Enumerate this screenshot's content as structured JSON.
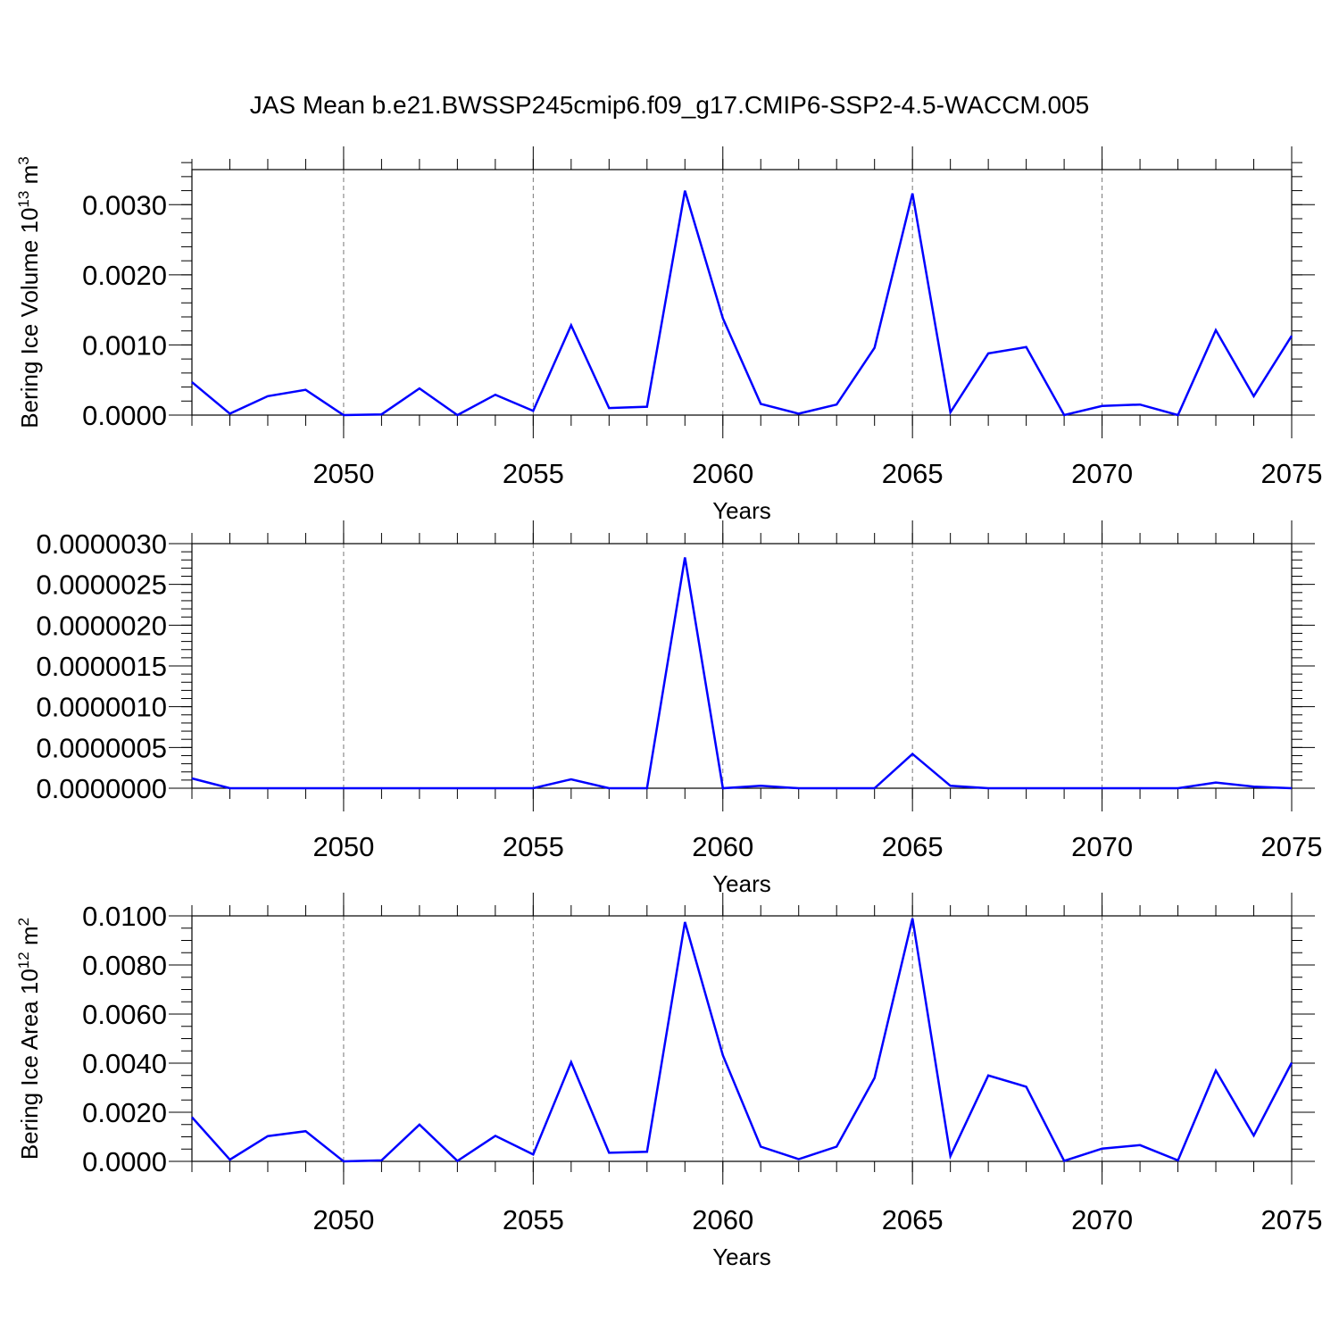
{
  "title": "JAS Mean b.e21.BWSSP245cmip6.f09_g17.CMIP6-SSP2-4.5-WACCM.005",
  "colors": {
    "line": "#0000ff",
    "axis": "#000000",
    "grid": "#777777"
  },
  "chart_data": [
    {
      "type": "line",
      "ylabel": "Bering Ice Volume",
      "ylabel_unit_base": "10",
      "ylabel_unit_exp": "13",
      "ylabel_unit_sym": "m",
      "ylabel_unit_pow": "3",
      "xlabel": "Years",
      "xlim": [
        2046,
        2075
      ],
      "ylim": [
        0,
        0.0035
      ],
      "xticks": [
        "2050",
        "2055",
        "2060",
        "2065",
        "2070",
        "2075"
      ],
      "yticks": [
        "0.0000",
        "0.0010",
        "0.0020",
        "0.0030"
      ],
      "ytick_values": [
        0,
        0.001,
        0.002,
        0.003
      ],
      "y_minor_step": 0.0002,
      "grid": "vertical dashed at major x ticks",
      "x": [
        2046,
        2047,
        2048,
        2049,
        2050,
        2051,
        2052,
        2053,
        2054,
        2055,
        2056,
        2057,
        2058,
        2059,
        2060,
        2061,
        2062,
        2063,
        2064,
        2065,
        2066,
        2067,
        2068,
        2069,
        2070,
        2071,
        2072,
        2073,
        2074,
        2075
      ],
      "values": [
        0.00047,
        2e-05,
        0.00027,
        0.00036,
        0.0,
        1e-05,
        0.00038,
        0.0,
        0.00029,
        6e-05,
        0.00128,
        0.0001,
        0.00012,
        0.0032,
        0.00138,
        0.00016,
        2e-05,
        0.00015,
        0.00096,
        0.00316,
        4e-05,
        0.00088,
        0.00097,
        0.0,
        0.00013,
        0.00015,
        0.0,
        0.00121,
        0.00027,
        0.00113
      ]
    },
    {
      "type": "line",
      "ylabel": "",
      "xlabel": "Years",
      "xlim": [
        2046,
        2075
      ],
      "ylim": [
        0,
        3e-06
      ],
      "xticks": [
        "2050",
        "2055",
        "2060",
        "2065",
        "2070",
        "2075"
      ],
      "yticks": [
        "0.0000000",
        "0.0000005",
        "0.0000010",
        "0.0000015",
        "0.0000020",
        "0.0000025",
        "0.0000030"
      ],
      "ytick_values": [
        0,
        5e-07,
        1e-06,
        1.5e-06,
        2e-06,
        2.5e-06,
        3e-06
      ],
      "y_minor_step": 1e-07,
      "grid": "vertical dashed at major x ticks",
      "x": [
        2046,
        2047,
        2048,
        2049,
        2050,
        2051,
        2052,
        2053,
        2054,
        2055,
        2056,
        2057,
        2058,
        2059,
        2060,
        2061,
        2062,
        2063,
        2064,
        2065,
        2066,
        2067,
        2068,
        2069,
        2070,
        2071,
        2072,
        2073,
        2074,
        2075
      ],
      "values": [
        1.2e-07,
        0.0,
        0.0,
        0.0,
        0.0,
        0.0,
        0.0,
        0.0,
        0.0,
        0.0,
        1.1e-07,
        0.0,
        0.0,
        2.83e-06,
        0.0,
        3e-08,
        0.0,
        0.0,
        0.0,
        4.2e-07,
        3e-08,
        0.0,
        0.0,
        0.0,
        0.0,
        0.0,
        0.0,
        7e-08,
        2e-08,
        0.0
      ]
    },
    {
      "type": "line",
      "ylabel": "Bering Ice Area",
      "ylabel_unit_base": "10",
      "ylabel_unit_exp": "12",
      "ylabel_unit_sym": "m",
      "ylabel_unit_pow": "2",
      "xlabel": "Years",
      "xlim": [
        2046,
        2075
      ],
      "ylim": [
        0,
        0.01
      ],
      "xticks": [
        "2050",
        "2055",
        "2060",
        "2065",
        "2070",
        "2075"
      ],
      "yticks": [
        "0.0000",
        "0.0020",
        "0.0040",
        "0.0060",
        "0.0080",
        "0.0100"
      ],
      "ytick_values": [
        0,
        0.002,
        0.004,
        0.006,
        0.008,
        0.01
      ],
      "y_minor_step": 0.0005,
      "grid": "vertical dashed at major x ticks",
      "x": [
        2046,
        2047,
        2048,
        2049,
        2050,
        2051,
        2052,
        2053,
        2054,
        2055,
        2056,
        2057,
        2058,
        2059,
        2060,
        2061,
        2062,
        2063,
        2064,
        2065,
        2066,
        2067,
        2068,
        2069,
        2070,
        2071,
        2072,
        2073,
        2074,
        2075
      ],
      "values": [
        0.0018,
        7e-05,
        0.00103,
        0.00123,
        0.0,
        4e-05,
        0.0015,
        2e-05,
        0.00104,
        0.00028,
        0.00404,
        0.00035,
        0.00039,
        0.00975,
        0.00432,
        0.0006,
        9e-05,
        0.0006,
        0.0034,
        0.0099,
        0.00022,
        0.0035,
        0.00304,
        2e-05,
        0.00052,
        0.00066,
        4e-05,
        0.0037,
        0.00105,
        0.00402
      ]
    }
  ]
}
